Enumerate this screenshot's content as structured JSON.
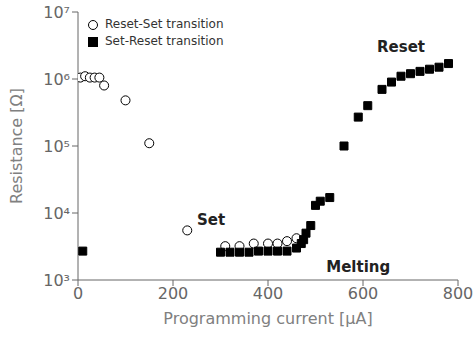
{
  "chart_data": {
    "type": "scatter",
    "xlabel": "Programming current [μA]",
    "ylabel": "Resistance [Ω]",
    "xlim": [
      0,
      800
    ],
    "xticks": [
      0,
      200,
      400,
      600,
      800
    ],
    "ylim": [
      1000,
      10000000
    ],
    "yticks": [
      {
        "value": 1000,
        "label": "10³"
      },
      {
        "value": 10000,
        "label": "10⁴"
      },
      {
        "value": 100000,
        "label": "10⁵"
      },
      {
        "value": 1000000,
        "label": "10⁶"
      },
      {
        "value": 10000000,
        "label": "10⁷"
      }
    ],
    "log": "y",
    "grid": false,
    "legend": "upper left",
    "annotations": [
      {
        "x": 680,
        "y": 3000000,
        "text": "Reset"
      },
      {
        "x": 280,
        "y": 8000,
        "text": "Set"
      },
      {
        "x": 590,
        "y": 1600,
        "text": "Melting"
      }
    ],
    "series": [
      {
        "name": "Reset-Set transition",
        "color": "black",
        "marker": "open_circle",
        "x": [
          5,
          15,
          25,
          35,
          45,
          55,
          100,
          150,
          230,
          310,
          340,
          370,
          400,
          420,
          440,
          460
        ],
        "values": [
          1050000,
          1100000,
          1050000,
          1050000,
          1050000,
          800000,
          480000,
          110000,
          5500,
          3200,
          3200,
          3500,
          3500,
          3500,
          3800,
          4200
        ]
      },
      {
        "name": "Set-Reset transition",
        "color": "black",
        "marker": "square",
        "x": [
          10,
          300,
          320,
          340,
          360,
          380,
          400,
          420,
          440,
          460,
          470,
          475,
          480,
          490,
          500,
          510,
          530,
          560,
          590,
          610,
          640,
          660,
          680,
          700,
          720,
          740,
          760,
          780
        ],
        "values": [
          2700,
          2600,
          2600,
          2600,
          2600,
          2700,
          2700,
          2700,
          2700,
          3000,
          3500,
          4000,
          5000,
          6500,
          13000,
          15000,
          17000,
          100000,
          270000,
          400000,
          700000,
          900000,
          1100000,
          1200000,
          1300000,
          1400000,
          1500000,
          1700000
        ]
      }
    ]
  }
}
